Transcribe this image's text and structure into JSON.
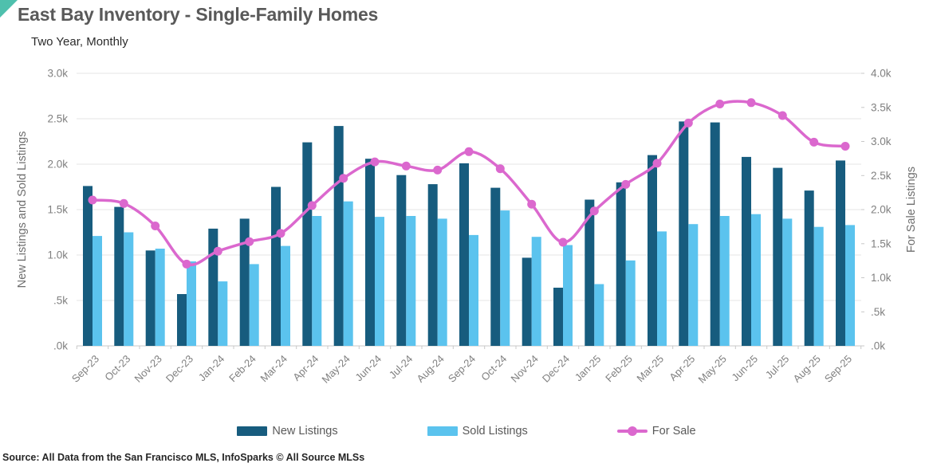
{
  "header": {
    "title": "East Bay Inventory - Single-Family Homes",
    "subtitle": "Two Year, Monthly"
  },
  "source": "Source: All Data from the San Francisco MLS, InfoSparks © All Source MLSs",
  "legend": {
    "items": [
      {
        "label": "New Listings",
        "marker": "swatch",
        "color": "#175C7E"
      },
      {
        "label": "Sold Listings",
        "marker": "swatch",
        "color": "#5BC3EE"
      },
      {
        "label": "For Sale",
        "marker": "line-dot",
        "color": "#DB68CE"
      }
    ]
  },
  "colors": {
    "corner_accent": "#4FC0AD",
    "grid": "#E4E4E4",
    "axis_line": "#C8C8C8",
    "tick_text": "#808080",
    "axis_title_text": "#6E6E6E"
  },
  "chart_data": {
    "type": "bar",
    "subtype": "grouped bars with overlaid smooth line",
    "title": "East Bay Inventory - Single-Family Homes",
    "subtitle": "Two Year, Monthly",
    "grid": true,
    "legend_position": "bottom",
    "categories": [
      "Sep-23",
      "Oct-23",
      "Nov-23",
      "Dec-23",
      "Jan-24",
      "Feb-24",
      "Mar-24",
      "Apr-24",
      "May-24",
      "Jun-24",
      "Jul-24",
      "Aug-24",
      "Sep-24",
      "Oct-24",
      "Nov-24",
      "Dec-24",
      "Jan-25",
      "Feb-25",
      "Mar-25",
      "Apr-25",
      "May-25",
      "Jun-25",
      "Jul-25",
      "Aug-25",
      "Sep-25"
    ],
    "series": [
      {
        "name": "New Listings",
        "type": "bar",
        "axis": "left",
        "color": "#175C7E",
        "values": [
          1760,
          1530,
          1050,
          570,
          1290,
          1400,
          1750,
          2240,
          2420,
          2060,
          1880,
          1780,
          2010,
          1740,
          970,
          640,
          1610,
          1800,
          2100,
          2470,
          2460,
          2080,
          1960,
          1710,
          2040
        ]
      },
      {
        "name": "Sold Listings",
        "type": "bar",
        "axis": "left",
        "color": "#5BC3EE",
        "values": [
          1210,
          1250,
          1070,
          930,
          710,
          900,
          1100,
          1430,
          1590,
          1420,
          1430,
          1400,
          1220,
          1490,
          1200,
          1110,
          680,
          940,
          1260,
          1340,
          1430,
          1450,
          1400,
          1310,
          1330
        ]
      },
      {
        "name": "For Sale",
        "type": "line",
        "axis": "right",
        "color": "#DB68CE",
        "values": [
          2140,
          2090,
          1760,
          1200,
          1390,
          1530,
          1650,
          2060,
          2460,
          2700,
          2640,
          2580,
          2850,
          2600,
          2080,
          1520,
          1980,
          2370,
          2680,
          3270,
          3550,
          3570,
          3380,
          2990,
          2930
        ]
      }
    ],
    "left_axis": {
      "label": "New Listings and Sold Listings",
      "range": [
        0,
        3000
      ],
      "tick_labels": [
        ".0k",
        ".5k",
        "1.0k",
        "1.5k",
        "2.0k",
        "2.5k",
        "3.0k"
      ]
    },
    "right_axis": {
      "label": "For Sale Listings",
      "range": [
        0,
        4000
      ],
      "tick_labels": [
        ".0k",
        ".5k",
        "1.0k",
        "1.5k",
        "2.0k",
        "2.5k",
        "3.0k",
        "3.5k",
        "4.0k"
      ]
    }
  }
}
